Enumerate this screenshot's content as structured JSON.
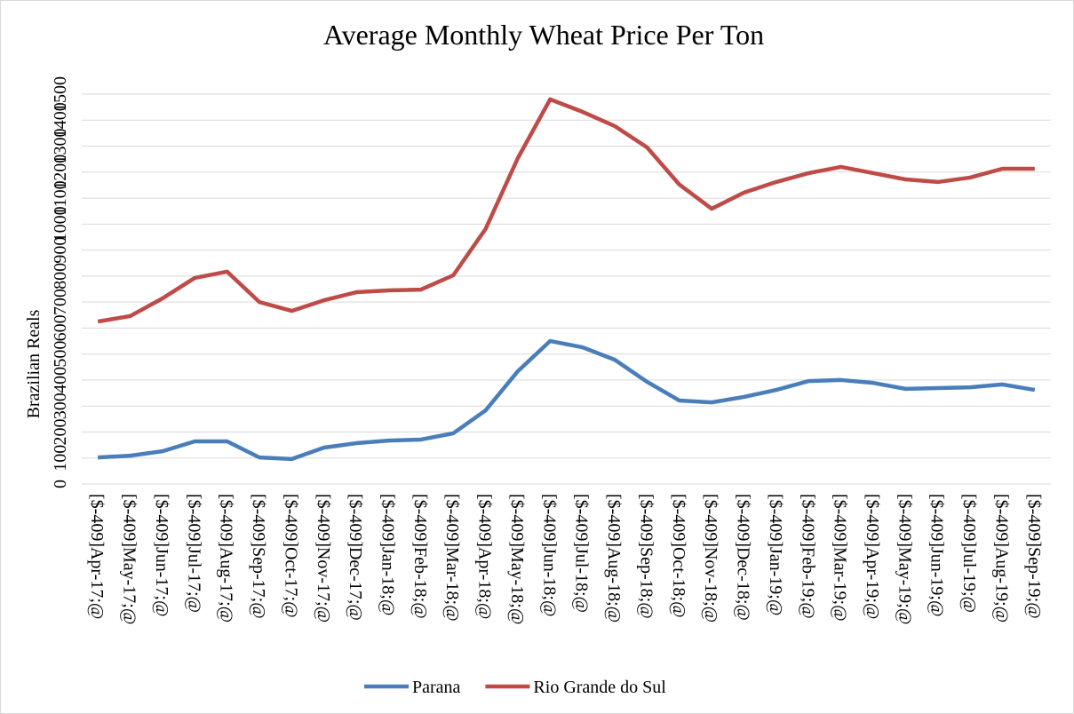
{
  "chart_data": {
    "type": "line",
    "title": "Average Monthly Wheat Price Per Ton",
    "y_label": "Brazilian Reals",
    "categories": [
      "[$-409]Apr-17;@",
      "[$-409]May-17;@",
      "[$-409]Jun-17;@",
      "[$-409]Jul-17;@",
      "[$-409]Aug-17;@",
      "[$-409]Sep-17;@",
      "[$-409]Oct-17;@",
      "[$-409]Nov-17;@",
      "[$-409]Dec-17;@",
      "[$-409]Jan-18;@",
      "[$-409]Feb-18;@",
      "[$-409]Mar-18;@",
      "[$-409]Apr-18;@",
      "[$-409]May-18;@",
      "[$-409]Jun-18;@",
      "[$-409]Jul-18;@",
      "[$-409]Aug-18;@",
      "[$-409]Sep-18;@",
      "[$-409]Oct-18;@",
      "[$-409]Nov-18;@",
      "[$-409]Dec-18;@",
      "[$-409]Jan-19;@",
      "[$-409]Feb-19;@",
      "[$-409]Mar-19;@",
      "[$-409]Apr-19;@",
      "[$-409]May-19;@",
      "[$-409]Jun-19;@",
      "[$-409]Jul-19;@",
      "[$-409]Aug-19;@",
      "[$-409]Sep-19;@"
    ],
    "series": [
      {
        "name": "Parana",
        "color": "#4a7ebb",
        "values": [
          102,
          109,
          126,
          164,
          164,
          102,
          96,
          140,
          157,
          167,
          171,
          195,
          283,
          434,
          550,
          526,
          478,
          393,
          321,
          314,
          335,
          362,
          396,
          400,
          389,
          366,
          369,
          372,
          383,
          362
        ]
      },
      {
        "name": "Rio Grande do Sul",
        "color": "#be4b48",
        "values": [
          625,
          646,
          714,
          793,
          817,
          700,
          666,
          707,
          738,
          745,
          748,
          803,
          981,
          1254,
          1480,
          1432,
          1377,
          1295,
          1152,
          1059,
          1121,
          1162,
          1196,
          1220,
          1196,
          1172,
          1162,
          1179,
          1213,
          1213
        ]
      }
    ],
    "ylim": [
      0,
      1500
    ],
    "yticks": [
      0,
      100,
      200,
      300,
      400,
      500,
      600,
      700,
      800,
      900,
      1000,
      1100,
      1200,
      1300,
      1400,
      1500
    ],
    "grid": true,
    "legend": "bottom"
  }
}
